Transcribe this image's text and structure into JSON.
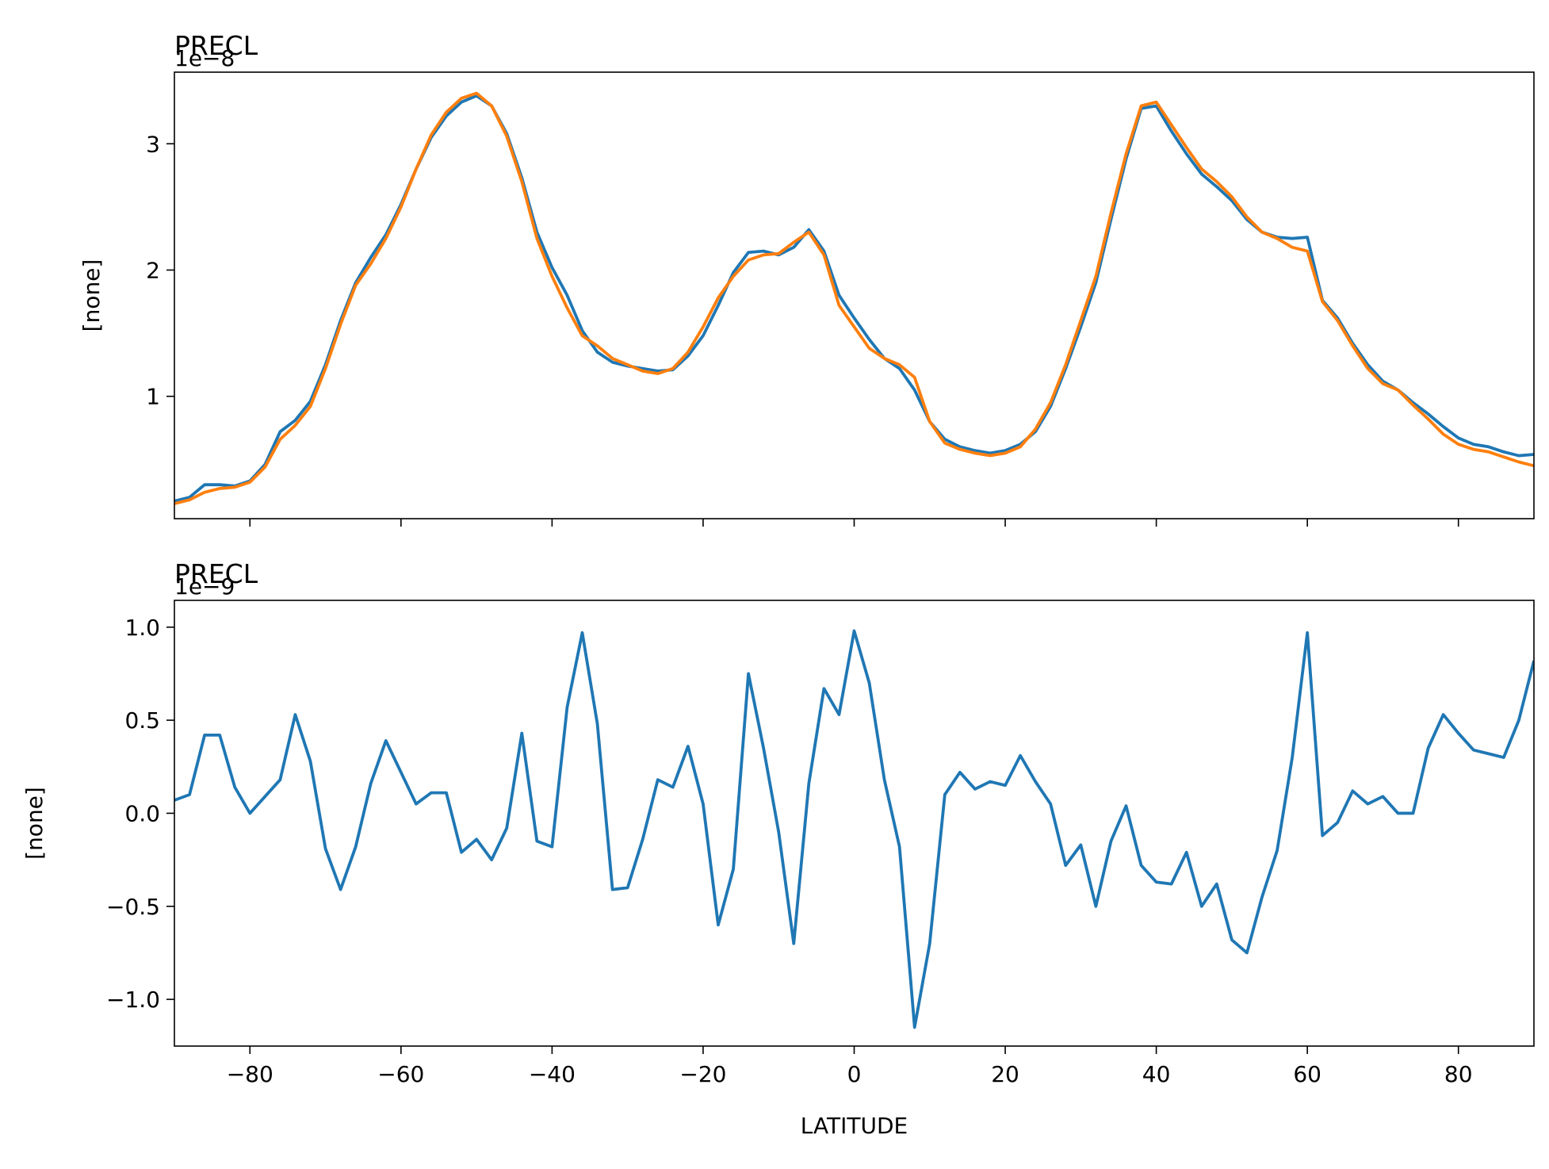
{
  "chart_data": [
    {
      "type": "line",
      "title": "PRECL",
      "offset_text": "1e−8",
      "ylabel": "[none]",
      "show_xticklabels": false,
      "x": [
        -90,
        -88,
        -86,
        -84,
        -82,
        -80,
        -78,
        -76,
        -74,
        -72,
        -70,
        -68,
        -66,
        -64,
        -62,
        -60,
        -58,
        -56,
        -54,
        -52,
        -50,
        -48,
        -46,
        -44,
        -42,
        -40,
        -38,
        -36,
        -34,
        -32,
        -30,
        -28,
        -26,
        -24,
        -22,
        -20,
        -18,
        -16,
        -14,
        -12,
        -10,
        -8,
        -6,
        -4,
        -2,
        0,
        2,
        4,
        6,
        8,
        10,
        12,
        14,
        16,
        18,
        20,
        22,
        24,
        26,
        28,
        30,
        32,
        34,
        36,
        38,
        40,
        42,
        44,
        46,
        48,
        50,
        52,
        54,
        56,
        58,
        60,
        62,
        64,
        66,
        68,
        70,
        72,
        74,
        76,
        78,
        80,
        82,
        84,
        86,
        88,
        90
      ],
      "series": [
        {
          "color": "#1f77b4",
          "values": [
            0.17,
            0.2,
            0.3,
            0.3,
            0.29,
            0.33,
            0.46,
            0.72,
            0.81,
            0.96,
            1.25,
            1.6,
            1.9,
            2.1,
            2.28,
            2.52,
            2.8,
            3.05,
            3.22,
            3.33,
            3.38,
            3.3,
            3.08,
            2.73,
            2.3,
            2.02,
            1.8,
            1.52,
            1.35,
            1.27,
            1.24,
            1.22,
            1.2,
            1.21,
            1.32,
            1.48,
            1.72,
            1.98,
            2.14,
            2.15,
            2.12,
            2.18,
            2.32,
            2.15,
            1.8,
            1.62,
            1.45,
            1.3,
            1.22,
            1.05,
            0.8,
            0.66,
            0.6,
            0.57,
            0.55,
            0.57,
            0.62,
            0.72,
            0.92,
            1.22,
            1.55,
            1.9,
            2.4,
            2.88,
            3.28,
            3.3,
            3.1,
            2.92,
            2.76,
            2.66,
            2.55,
            2.4,
            2.3,
            2.26,
            2.25,
            2.26,
            1.76,
            1.62,
            1.42,
            1.25,
            1.12,
            1.05,
            0.95,
            0.86,
            0.76,
            0.67,
            0.62,
            0.6,
            0.56,
            0.53,
            0.54
          ]
        },
        {
          "color": "#ff7f0e",
          "values": [
            0.15,
            0.18,
            0.24,
            0.27,
            0.28,
            0.32,
            0.44,
            0.66,
            0.77,
            0.92,
            1.22,
            1.57,
            1.88,
            2.05,
            2.25,
            2.5,
            2.8,
            3.07,
            3.25,
            3.36,
            3.4,
            3.3,
            3.06,
            2.7,
            2.25,
            1.95,
            1.7,
            1.48,
            1.4,
            1.3,
            1.25,
            1.2,
            1.18,
            1.22,
            1.35,
            1.55,
            1.78,
            1.95,
            2.08,
            2.12,
            2.13,
            2.22,
            2.3,
            2.12,
            1.72,
            1.55,
            1.38,
            1.3,
            1.25,
            1.15,
            0.8,
            0.63,
            0.58,
            0.55,
            0.53,
            0.55,
            0.6,
            0.74,
            0.95,
            1.25,
            1.6,
            1.95,
            2.45,
            2.92,
            3.3,
            3.33,
            3.15,
            2.97,
            2.8,
            2.7,
            2.58,
            2.42,
            2.3,
            2.25,
            2.18,
            2.15,
            1.75,
            1.6,
            1.4,
            1.22,
            1.1,
            1.05,
            0.93,
            0.82,
            0.7,
            0.62,
            0.58,
            0.56,
            0.52,
            0.48,
            0.45
          ]
        }
      ],
      "xlim": [
        -90,
        90
      ],
      "xticks": [
        {
          "value": -80,
          "label": "−80"
        },
        {
          "value": -60,
          "label": "−60"
        },
        {
          "value": -40,
          "label": "−40"
        },
        {
          "value": -20,
          "label": "−20"
        },
        0,
        20,
        40,
        60,
        80
      ],
      "ylim": [
        0.031,
        3.567
      ],
      "yticks": [
        1,
        2,
        3
      ]
    },
    {
      "type": "line",
      "title": "PRECL",
      "offset_text": "1e−9",
      "ylabel": "[none]",
      "xlabel": "LATITUDE",
      "show_xticklabels": true,
      "x": [
        -90,
        -88,
        -86,
        -84,
        -82,
        -80,
        -78,
        -76,
        -74,
        -72,
        -70,
        -68,
        -66,
        -64,
        -62,
        -60,
        -58,
        -56,
        -54,
        -52,
        -50,
        -48,
        -46,
        -44,
        -42,
        -40,
        -38,
        -36,
        -34,
        -32,
        -30,
        -28,
        -26,
        -24,
        -22,
        -20,
        -18,
        -16,
        -14,
        -12,
        -10,
        -8,
        -6,
        -4,
        -2,
        0,
        2,
        4,
        6,
        8,
        10,
        12,
        14,
        16,
        18,
        20,
        22,
        24,
        26,
        28,
        30,
        32,
        34,
        36,
        38,
        40,
        42,
        44,
        46,
        48,
        50,
        52,
        54,
        56,
        58,
        60,
        62,
        64,
        66,
        68,
        70,
        72,
        74,
        76,
        78,
        80,
        82,
        84,
        86,
        88,
        90
      ],
      "series": [
        {
          "color": "#1f77b4",
          "values": [
            0.07,
            0.1,
            0.42,
            0.42,
            0.14,
            0.0,
            0.09,
            0.18,
            0.53,
            0.28,
            -0.19,
            -0.41,
            -0.18,
            0.16,
            0.39,
            0.22,
            0.05,
            0.11,
            0.11,
            -0.21,
            -0.14,
            -0.25,
            -0.08,
            0.43,
            -0.15,
            -0.18,
            0.57,
            0.97,
            0.48,
            -0.41,
            -0.4,
            -0.14,
            0.18,
            0.14,
            0.36,
            0.05,
            -0.6,
            -0.3,
            0.75,
            0.35,
            -0.1,
            -0.7,
            0.16,
            0.67,
            0.53,
            0.98,
            0.7,
            0.18,
            -0.18,
            -1.15,
            -0.7,
            0.1,
            0.22,
            0.13,
            0.17,
            0.15,
            0.31,
            0.17,
            0.05,
            -0.28,
            -0.17,
            -0.5,
            -0.15,
            0.04,
            -0.28,
            -0.37,
            -0.38,
            -0.21,
            -0.5,
            -0.38,
            -0.68,
            -0.75,
            -0.45,
            -0.2,
            0.3,
            0.97,
            -0.12,
            -0.05,
            0.12,
            0.05,
            0.09,
            0.0,
            0.0,
            0.35,
            0.53,
            0.43,
            0.34,
            0.32,
            0.3,
            0.5,
            0.82
          ]
        }
      ],
      "xlim": [
        -90,
        90
      ],
      "xticks": [
        {
          "value": -80,
          "label": "−80"
        },
        {
          "value": -60,
          "label": "−60"
        },
        {
          "value": -40,
          "label": "−40"
        },
        {
          "value": -20,
          "label": "−20"
        },
        0,
        20,
        40,
        60,
        80
      ],
      "ylim": [
        -1.251,
        1.144
      ],
      "yticks": [
        {
          "value": -1.0,
          "label": "−1.0"
        },
        {
          "value": -0.5,
          "label": "−0.5"
        },
        {
          "value": 0.0,
          "label": "0.0"
        },
        {
          "value": 0.5,
          "label": "0.5"
        },
        {
          "value": 1.0,
          "label": "1.0"
        }
      ]
    }
  ]
}
